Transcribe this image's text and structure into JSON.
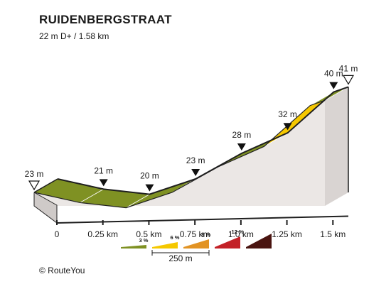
{
  "header": {
    "title": "RUIDENBERGSTRAAT",
    "subtitle": "22 m D+ / 1.58 km"
  },
  "footer": {
    "copyright": "© RouteYou"
  },
  "chart_data": {
    "type": "area",
    "title": "RUIDENBERGSTRAAT",
    "subtitle": "22 m D+ / 1.58 km",
    "xlabel": "",
    "ylabel": "",
    "x_unit": "km",
    "y_unit": "m",
    "xlim": [
      0,
      1.58
    ],
    "x_ticks": [
      {
        "value": 0,
        "label": "0"
      },
      {
        "value": 0.25,
        "label": "0.25 km"
      },
      {
        "value": 0.5,
        "label": "0.5 km"
      },
      {
        "value": 0.75,
        "label": "0.75 km"
      },
      {
        "value": 1.0,
        "label": "1.0 km"
      },
      {
        "value": 1.25,
        "label": "1.25 km"
      },
      {
        "value": 1.5,
        "label": "1.5 km"
      }
    ],
    "points": [
      {
        "x": 0,
        "y": 23,
        "label": "23 m",
        "marker": "start"
      },
      {
        "x": 0.25,
        "y": 21,
        "label": "21 m",
        "marker": "tick"
      },
      {
        "x": 0.5,
        "y": 20,
        "label": "20 m",
        "marker": "tick"
      },
      {
        "x": 0.75,
        "y": 23,
        "label": "23 m",
        "marker": "tick"
      },
      {
        "x": 1.0,
        "y": 28,
        "label": "28 m",
        "marker": "tick"
      },
      {
        "x": 1.25,
        "y": 32,
        "label": "32 m",
        "marker": "tick"
      },
      {
        "x": 1.5,
        "y": 40,
        "label": "40 m",
        "marker": "tick"
      },
      {
        "x": 1.58,
        "y": 41,
        "label": "41 m",
        "marker": "end"
      }
    ],
    "segments": [
      {
        "from": 0,
        "to": 0.25,
        "grade_class": "3"
      },
      {
        "from": 0.25,
        "to": 0.5,
        "grade_class": "3"
      },
      {
        "from": 0.5,
        "to": 0.75,
        "grade_class": "3"
      },
      {
        "from": 0.75,
        "to": 1.0,
        "grade_class": "3"
      },
      {
        "from": 1.0,
        "to": 1.25,
        "grade_class": "3"
      },
      {
        "from": 1.25,
        "to": 1.5,
        "grade_class": "6"
      },
      {
        "from": 1.5,
        "to": 1.58,
        "grade_class": "3"
      }
    ],
    "legend": {
      "items": [
        {
          "label": "3 %",
          "key": "3",
          "color": "#7f9123"
        },
        {
          "label": "6 %",
          "key": "6",
          "color": "#f5c800"
        },
        {
          "label": "9 %",
          "key": "9",
          "color": "#e29323"
        },
        {
          "label": "12 %",
          "key": "12",
          "color": "#c32127"
        },
        {
          "label": "",
          "key": "max",
          "color": "#4a1410"
        }
      ],
      "scale_label": "250 m",
      "placement": "bottom-center"
    }
  }
}
